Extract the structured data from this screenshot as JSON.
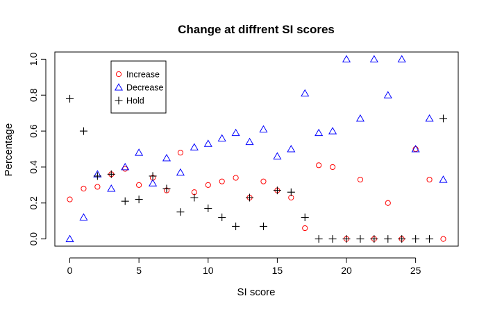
{
  "chart_data": {
    "type": "scatter",
    "title": "Change at diffrent SI scores",
    "xlabel": "SI score",
    "ylabel": "Percentage",
    "xlim": [
      -1.08,
      28.08
    ],
    "ylim": [
      -0.04,
      1.04
    ],
    "xticks": [
      0,
      5,
      10,
      15,
      20,
      25
    ],
    "yticks": [
      0.0,
      0.2,
      0.4,
      0.6,
      0.8,
      1.0
    ],
    "xtick_labels": [
      "0",
      "5",
      "10",
      "15",
      "20",
      "25"
    ],
    "ytick_labels": [
      "0.0",
      "0.2",
      "0.4",
      "0.6",
      "0.8",
      "1.0"
    ],
    "grid": false,
    "legend_position": "top-left",
    "x": [
      0,
      1,
      2,
      3,
      4,
      5,
      6,
      7,
      8,
      9,
      10,
      11,
      12,
      13,
      14,
      15,
      16,
      17,
      18,
      19,
      20,
      21,
      22,
      23,
      24,
      25,
      26,
      27
    ],
    "series": [
      {
        "name": "Increase",
        "marker": "circle",
        "color": "#ff0000",
        "values": [
          0.22,
          0.28,
          0.29,
          0.36,
          0.39,
          0.3,
          0.34,
          0.27,
          0.48,
          0.26,
          0.3,
          0.32,
          0.34,
          0.23,
          0.32,
          0.27,
          0.23,
          0.06,
          0.41,
          0.4,
          0.0,
          0.33,
          0.0,
          0.2,
          0.0,
          0.5,
          0.33,
          0.0
        ]
      },
      {
        "name": "Decrease",
        "marker": "triangle",
        "color": "#0000ff",
        "values": [
          0.0,
          0.12,
          0.36,
          0.28,
          0.4,
          0.48,
          0.31,
          0.45,
          0.37,
          0.51,
          0.53,
          0.56,
          0.59,
          0.54,
          0.61,
          0.46,
          0.5,
          0.81,
          0.59,
          0.6,
          1.0,
          0.67,
          1.0,
          0.8,
          1.0,
          0.5,
          0.67,
          0.33
        ]
      },
      {
        "name": "Hold",
        "marker": "plus",
        "color": "#000000",
        "values": [
          0.78,
          0.6,
          0.35,
          0.36,
          0.21,
          0.22,
          0.35,
          0.28,
          0.15,
          0.23,
          0.17,
          0.12,
          0.07,
          0.23,
          0.07,
          0.27,
          0.26,
          0.12,
          0.0,
          0.0,
          0.0,
          0.0,
          0.0,
          0.0,
          0.0,
          0.0,
          0.0,
          0.67
        ]
      }
    ]
  }
}
